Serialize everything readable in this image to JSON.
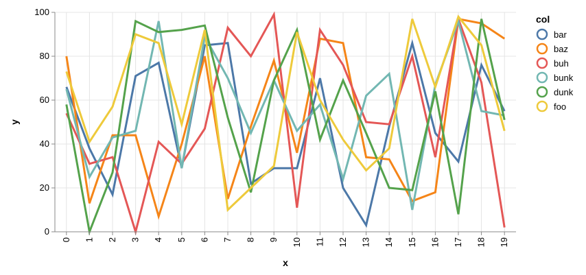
{
  "chart_data": {
    "type": "line",
    "title": "",
    "xlabel": "x",
    "ylabel": "y",
    "xlim": [
      0,
      19
    ],
    "ylim": [
      0,
      100
    ],
    "grid": true,
    "legend_title": "col",
    "legend_position": "right",
    "x": [
      0,
      1,
      2,
      3,
      4,
      5,
      6,
      7,
      8,
      9,
      10,
      11,
      12,
      13,
      14,
      15,
      16,
      17,
      18,
      19
    ],
    "y_ticks": [
      0,
      20,
      40,
      60,
      80,
      100
    ],
    "series": [
      {
        "name": "bar",
        "color": "#4c78a8",
        "values": [
          66,
          38,
          17,
          71,
          77,
          29,
          85,
          86,
          22,
          29,
          29,
          70,
          20,
          3,
          48,
          86,
          45,
          32,
          76,
          55
        ]
      },
      {
        "name": "baz",
        "color": "#f58518",
        "values": [
          80,
          13,
          44,
          44,
          7,
          40,
          80,
          15,
          48,
          78,
          36,
          88,
          86,
          34,
          33,
          14,
          18,
          97,
          95,
          88
        ]
      },
      {
        "name": "buh",
        "color": "#e45756",
        "values": [
          54,
          31,
          34,
          0,
          41,
          31,
          47,
          93,
          80,
          99,
          11,
          92,
          76,
          50,
          49,
          80,
          34,
          97,
          68,
          2
        ]
      },
      {
        "name": "bunk",
        "color": "#72b7b2",
        "values": [
          65,
          25,
          43,
          46,
          96,
          29,
          89,
          70,
          45,
          69,
          46,
          58,
          24,
          62,
          72,
          10,
          67,
          96,
          55,
          53
        ]
      },
      {
        "name": "dunk",
        "color": "#54a24b",
        "values": [
          58,
          0,
          27,
          96,
          91,
          92,
          94,
          52,
          18,
          69,
          92,
          42,
          69,
          45,
          20,
          19,
          64,
          8,
          97,
          51
        ]
      },
      {
        "name": "foo",
        "color": "#eeca3b",
        "values": [
          73,
          41,
          57,
          90,
          86,
          49,
          92,
          10,
          20,
          30,
          91,
          60,
          42,
          28,
          38,
          97,
          66,
          98,
          85,
          46
        ]
      }
    ]
  }
}
